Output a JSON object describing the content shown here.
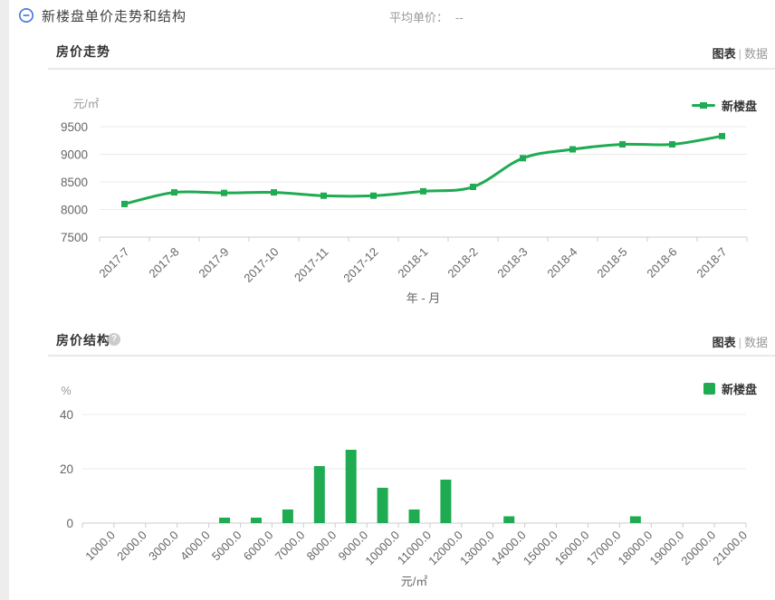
{
  "header": {
    "title": "新楼盘单价走势和结构",
    "average_label": "平均单价：",
    "average_value": "--"
  },
  "sections": [
    {
      "title": "房价走势",
      "toggle": {
        "chart_label": "图表",
        "separator": "|",
        "data_label": "数据",
        "active": "图表"
      }
    },
    {
      "title": "房价结构",
      "help_icon": "?",
      "toggle": {
        "chart_label": "图表",
        "separator": "|",
        "data_label": "数据",
        "active": "图表"
      }
    }
  ],
  "colors": {
    "series_green": "#1FAB52",
    "collapse_icon_blue": "#4273D8",
    "grid_line": "#ebebeb",
    "axis_line": "#cccccc",
    "axis_text": "#666666",
    "muted_text": "#999999",
    "title_text": "#333333",
    "divider": "#e9e9e9"
  },
  "chart_data": [
    {
      "type": "line",
      "title": "房价走势",
      "x": [
        "2017-7",
        "2017-8",
        "2017-9",
        "2017-10",
        "2017-11",
        "2017-12",
        "2018-1",
        "2018-2",
        "2018-3",
        "2018-4",
        "2018-5",
        "2018-6",
        "2018-7"
      ],
      "series": [
        {
          "name": "新楼盘",
          "values": [
            8100,
            8310,
            8300,
            8310,
            8250,
            8250,
            8330,
            8410,
            8930,
            9090,
            9180,
            9180,
            9330
          ]
        }
      ],
      "xlabel": "年 - 月",
      "ylabel": "元/㎡",
      "yticks": [
        7500,
        8000,
        8500,
        9000,
        9500
      ],
      "ylim": [
        7500,
        9500
      ],
      "grid": true,
      "smooth": true,
      "legend_position": "top-right"
    },
    {
      "type": "bar",
      "title": "房价结构",
      "categories": [
        "1000.0",
        "2000.0",
        "3000.0",
        "4000.0",
        "5000.0",
        "6000.0",
        "7000.0",
        "8000.0",
        "9000.0",
        "10000.0",
        "11000.0",
        "12000.0",
        "13000.0",
        "14000.0",
        "15000.0",
        "16000.0",
        "17000.0",
        "18000.0",
        "19000.0",
        "20000.0",
        "21000.0"
      ],
      "series": [
        {
          "name": "新楼盘",
          "values": [
            0,
            0,
            0,
            0,
            2,
            2,
            5,
            21,
            27,
            13,
            5,
            16,
            0,
            2.5,
            0,
            0,
            0,
            2.5,
            0,
            0,
            0
          ]
        }
      ],
      "xlabel": "元/㎡",
      "ylabel": "%",
      "yticks": [
        0,
        20,
        40
      ],
      "ylim": [
        0,
        40
      ],
      "grid": true,
      "legend_position": "top-right"
    }
  ]
}
